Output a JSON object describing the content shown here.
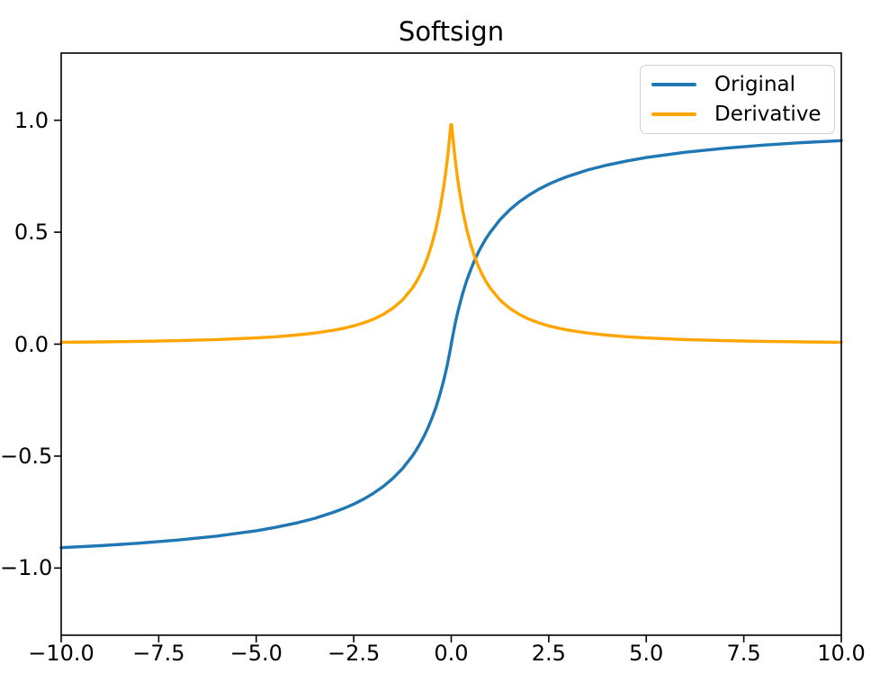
{
  "figure": {
    "title": "Softsign"
  },
  "chart_data": {
    "type": "line",
    "title": "Softsign",
    "xlabel": "",
    "ylabel": "",
    "xlim": [
      -10,
      10
    ],
    "ylim": [
      -1.3,
      1.3
    ],
    "grid": false,
    "legend": {
      "position": "upper right",
      "entries": [
        "Original",
        "Derivative"
      ]
    },
    "x_ticks": {
      "values": [
        -10,
        -7.5,
        -5,
        -2.5,
        0,
        2.5,
        5,
        7.5,
        10
      ],
      "labels": [
        "−10.0",
        "−7.5",
        "−5.0",
        "−2.5",
        "0.0",
        "2.5",
        "5.0",
        "7.5",
        "10.0"
      ]
    },
    "y_ticks": {
      "values": [
        -1,
        -0.5,
        0,
        0.5,
        1
      ],
      "labels": [
        "−1.0",
        "−0.5",
        "0.0",
        "0.5",
        "1.0"
      ]
    },
    "x": [
      -10,
      -9,
      -8,
      -7,
      -6,
      -5,
      -4.5,
      -4,
      -3.5,
      -3,
      -2.75,
      -2.5,
      -2.25,
      -2,
      -1.75,
      -1.5,
      -1.25,
      -1,
      -0.9,
      -0.8,
      -0.7,
      -0.6,
      -0.5,
      -0.4,
      -0.3,
      -0.2,
      -0.15,
      -0.1,
      -0.05,
      -0.01,
      0.01,
      0.05,
      0.1,
      0.15,
      0.2,
      0.3,
      0.4,
      0.5,
      0.6,
      0.7,
      0.8,
      0.9,
      1,
      1.25,
      1.5,
      1.75,
      2,
      2.25,
      2.5,
      2.75,
      3,
      3.5,
      4,
      4.5,
      5,
      6,
      7,
      8,
      9,
      10
    ],
    "series": [
      {
        "name": "Original",
        "color": "#1f77b4",
        "formula": "x / (1 + |x|)",
        "values": [
          -0.9091,
          -0.9,
          -0.8889,
          -0.875,
          -0.8571,
          -0.8333,
          -0.8182,
          -0.8,
          -0.7778,
          -0.75,
          -0.7333,
          -0.7143,
          -0.6923,
          -0.6667,
          -0.6364,
          -0.6,
          -0.5556,
          -0.5,
          -0.4737,
          -0.4444,
          -0.4118,
          -0.375,
          -0.3333,
          -0.2857,
          -0.2308,
          -0.1667,
          -0.1304,
          -0.0909,
          -0.0476,
          -0.0099,
          0.0099,
          0.0476,
          0.0909,
          0.1304,
          0.1667,
          0.2308,
          0.2857,
          0.3333,
          0.375,
          0.4118,
          0.4444,
          0.4737,
          0.5,
          0.5556,
          0.6,
          0.6364,
          0.6667,
          0.6923,
          0.7143,
          0.7333,
          0.75,
          0.7778,
          0.8,
          0.8182,
          0.8333,
          0.8571,
          0.875,
          0.8889,
          0.9,
          0.9091
        ]
      },
      {
        "name": "Derivative",
        "color": "#ffa500",
        "formula": "1 / (1 + |x|)^2",
        "values": [
          0.0083,
          0.01,
          0.0123,
          0.0156,
          0.0204,
          0.0278,
          0.0331,
          0.04,
          0.0494,
          0.0625,
          0.0711,
          0.0816,
          0.0947,
          0.1111,
          0.1322,
          0.16,
          0.1975,
          0.25,
          0.277,
          0.3086,
          0.346,
          0.3906,
          0.4444,
          0.5102,
          0.5917,
          0.6944,
          0.7561,
          0.8264,
          0.907,
          0.9803,
          0.9803,
          0.907,
          0.8264,
          0.7561,
          0.6944,
          0.5917,
          0.5102,
          0.4444,
          0.3906,
          0.346,
          0.3086,
          0.277,
          0.25,
          0.1975,
          0.16,
          0.1322,
          0.1111,
          0.0947,
          0.0816,
          0.0711,
          0.0625,
          0.0494,
          0.04,
          0.0331,
          0.0278,
          0.0204,
          0.0156,
          0.0123,
          0.01,
          0.0083
        ]
      }
    ]
  }
}
